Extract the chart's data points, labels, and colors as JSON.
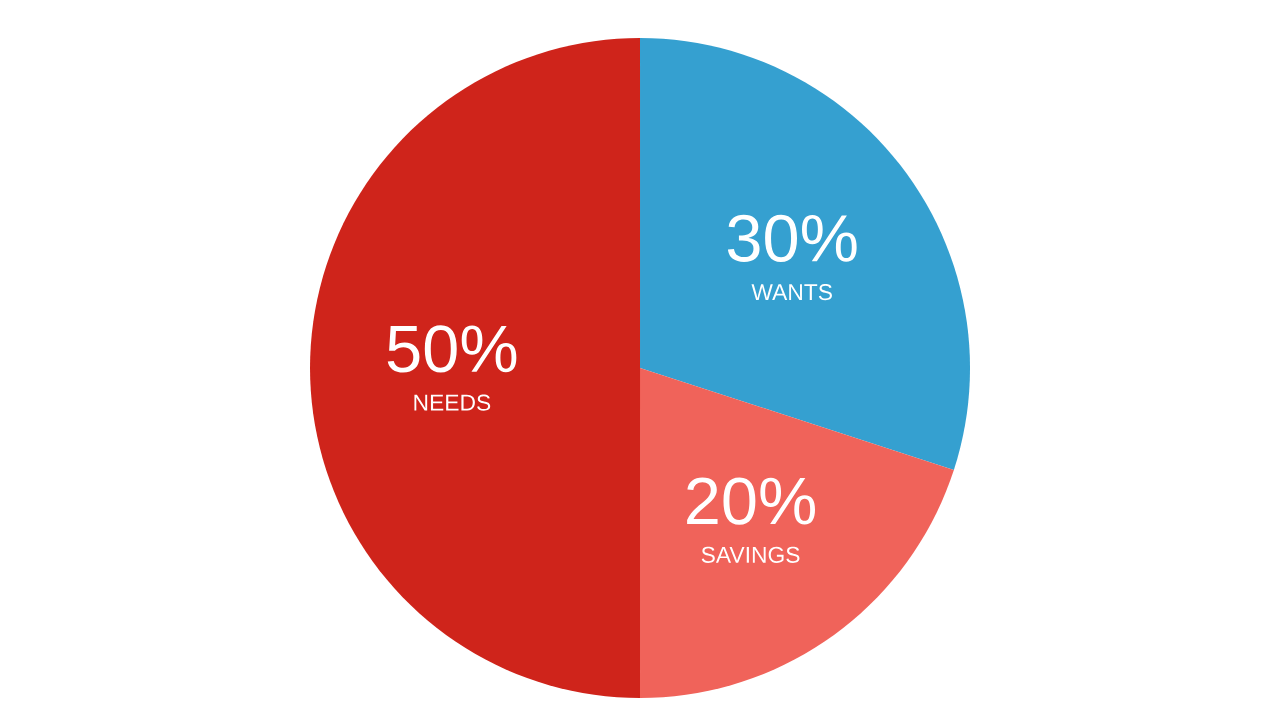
{
  "chart_data": {
    "type": "pie",
    "categories": [
      "WANTS",
      "SAVINGS",
      "NEEDS"
    ],
    "values": [
      30,
      20,
      50
    ],
    "colors": [
      "#35a0d0",
      "#f0635a",
      "#cf241b"
    ],
    "value_labels": [
      "30%",
      "20%",
      "50%"
    ]
  }
}
